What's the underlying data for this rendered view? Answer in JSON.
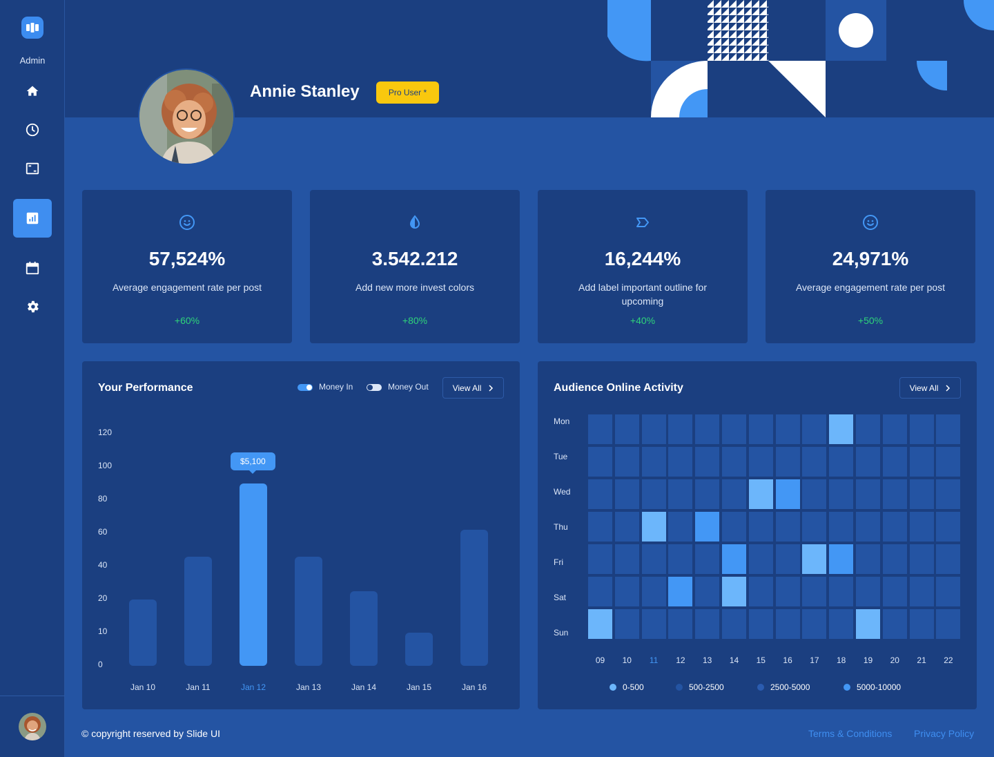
{
  "sidebar": {
    "admin_label": "Admin",
    "nav": [
      "home",
      "history",
      "media",
      "analytics",
      "calendar",
      "settings"
    ]
  },
  "profile": {
    "name": "Annie Stanley",
    "badge": "Pro User *"
  },
  "stats": [
    {
      "value": "57,524%",
      "desc": "Average engagement rate per post",
      "change": "+60%",
      "icon": "smile-icon"
    },
    {
      "value": "3.542.212",
      "desc": "Add new more invest colors",
      "change": "+80%",
      "icon": "drop-icon"
    },
    {
      "value": "16,244%",
      "desc": "Add label important outline for upcoming",
      "change": "+40%",
      "icon": "label-icon"
    },
    {
      "value": "24,971%",
      "desc": "Average engagement rate per post",
      "change": "+50%",
      "icon": "smile-icon"
    }
  ],
  "performance": {
    "title": "Your Performance",
    "toggle_in": "Money In",
    "toggle_out": "Money Out",
    "view_all": "View All",
    "tooltip": "$5,100",
    "y_ticks": [
      "120",
      "100",
      "80",
      "60",
      "40",
      "20",
      "10",
      "0"
    ]
  },
  "activity": {
    "title": "Audience Online Activity",
    "view_all": "View All",
    "days": [
      "Mon",
      "Tue",
      "Wed",
      "Thu",
      "Fri",
      "Sat",
      "Sun"
    ],
    "hours": [
      "09",
      "10",
      "11",
      "12",
      "13",
      "14",
      "15",
      "16",
      "17",
      "18",
      "19",
      "20",
      "21",
      "22"
    ],
    "highlight_hour": "11",
    "legend": [
      {
        "label": "0-500",
        "color": "#6cb6fb"
      },
      {
        "label": "500-2500",
        "color": "#2454a3"
      },
      {
        "label": "2500-5000",
        "color": "#2b5cb0"
      },
      {
        "label": "5000-10000",
        "color": "#4397f5"
      }
    ],
    "cells": [
      [
        0,
        0,
        0,
        0,
        0,
        0,
        0,
        0,
        0,
        1,
        0,
        0,
        0,
        0
      ],
      [
        0,
        0,
        0,
        0,
        0,
        0,
        0,
        0,
        0,
        0,
        0,
        0,
        0,
        0
      ],
      [
        0,
        0,
        0,
        0,
        0,
        0,
        1,
        2,
        0,
        0,
        0,
        0,
        0,
        0
      ],
      [
        0,
        0,
        1,
        0,
        2,
        0,
        0,
        0,
        0,
        0,
        0,
        0,
        0,
        0
      ],
      [
        0,
        0,
        0,
        0,
        0,
        2,
        0,
        0,
        1,
        2,
        0,
        0,
        0,
        0
      ],
      [
        0,
        0,
        0,
        2,
        0,
        1,
        0,
        0,
        0,
        0,
        0,
        0,
        0,
        0
      ],
      [
        1,
        0,
        0,
        0,
        0,
        0,
        0,
        0,
        0,
        0,
        1,
        0,
        0,
        0
      ]
    ]
  },
  "chart_data": {
    "type": "bar",
    "title": "Your Performance",
    "categories": [
      "Jan 10",
      "Jan 11",
      "Jan 12",
      "Jan 13",
      "Jan 14",
      "Jan 15",
      "Jan 16"
    ],
    "values": [
      20,
      46,
      90,
      46,
      25,
      10,
      62
    ],
    "highlight_index": 2,
    "y_ticks": [
      120,
      100,
      80,
      60,
      40,
      20,
      10,
      0
    ],
    "xlabel": "",
    "ylabel": ""
  },
  "footer": {
    "copyright": "© copyright reserved by Slide UI",
    "terms": "Terms & Conditions",
    "privacy": "Privacy Policy"
  }
}
